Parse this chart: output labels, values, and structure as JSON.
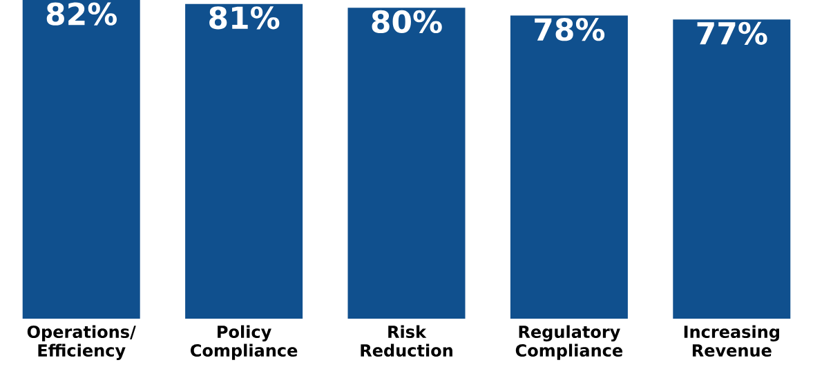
{
  "chart_data": {
    "type": "bar",
    "categories": [
      "Operations/ Efficiency",
      "Policy Compliance",
      "Risk Reduction",
      "Regulatory Compliance",
      "Increasing Revenue"
    ],
    "values": [
      82,
      81,
      80,
      78,
      77
    ],
    "value_labels": [
      "82%",
      "81%",
      "80%",
      "78%",
      "77%"
    ],
    "color": "#10508e"
  }
}
